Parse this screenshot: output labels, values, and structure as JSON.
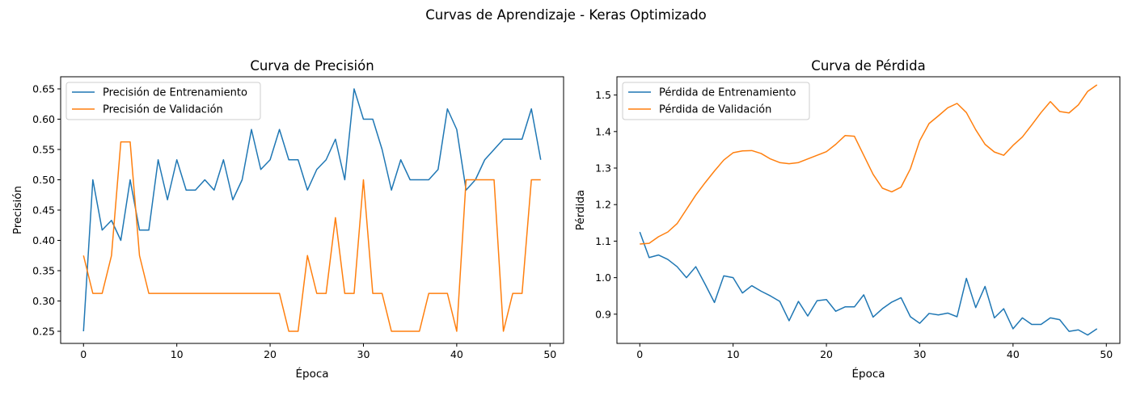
{
  "figure_title": "Curvas de Aprendizaje - Keras Optimizado",
  "chart_data": [
    {
      "type": "line",
      "title": "Curva de Precisión",
      "xlabel": "Época",
      "ylabel": "Precisión",
      "xlim": [
        -2.45,
        51.45
      ],
      "ylim": [
        0.23,
        0.67
      ],
      "xticks": [
        0,
        10,
        20,
        30,
        40,
        50
      ],
      "yticks": [
        0.25,
        0.3,
        0.35,
        0.4,
        0.45,
        0.5,
        0.55,
        0.6,
        0.65
      ],
      "ytick_decimals": 2,
      "legend_position": "upper-left",
      "x": [
        0,
        1,
        2,
        3,
        4,
        5,
        6,
        7,
        8,
        9,
        10,
        11,
        12,
        13,
        14,
        15,
        16,
        17,
        18,
        19,
        20,
        21,
        22,
        23,
        24,
        25,
        26,
        27,
        28,
        29,
        30,
        31,
        32,
        33,
        34,
        35,
        36,
        37,
        38,
        39,
        40,
        41,
        42,
        43,
        44,
        45,
        46,
        47,
        48,
        49
      ],
      "series": [
        {
          "name": "Precisión de Entrenamiento",
          "color": "#1f77b4",
          "values": [
            0.25,
            0.5,
            0.417,
            0.433,
            0.4,
            0.5,
            0.417,
            0.417,
            0.533,
            0.467,
            0.533,
            0.483,
            0.483,
            0.5,
            0.483,
            0.533,
            0.467,
            0.5,
            0.583,
            0.517,
            0.533,
            0.583,
            0.533,
            0.533,
            0.483,
            0.517,
            0.533,
            0.567,
            0.5,
            0.65,
            0.6,
            0.6,
            0.55,
            0.483,
            0.533,
            0.5,
            0.5,
            0.5,
            0.517,
            0.617,
            0.583,
            0.483,
            0.5,
            0.533,
            0.55,
            0.567,
            0.567,
            0.567,
            0.617,
            0.533
          ]
        },
        {
          "name": "Precisión de Validación",
          "color": "#ff7f0e",
          "values": [
            0.375,
            0.3125,
            0.3125,
            0.375,
            0.5625,
            0.5625,
            0.375,
            0.3125,
            0.3125,
            0.3125,
            0.3125,
            0.3125,
            0.3125,
            0.3125,
            0.3125,
            0.3125,
            0.3125,
            0.3125,
            0.3125,
            0.3125,
            0.3125,
            0.3125,
            0.25,
            0.25,
            0.375,
            0.3125,
            0.3125,
            0.4375,
            0.3125,
            0.3125,
            0.5,
            0.3125,
            0.3125,
            0.25,
            0.25,
            0.25,
            0.25,
            0.3125,
            0.3125,
            0.3125,
            0.25,
            0.5,
            0.5,
            0.5,
            0.5,
            0.25,
            0.3125,
            0.3125,
            0.5,
            0.5
          ]
        }
      ]
    },
    {
      "type": "line",
      "title": "Curva de Pérdida",
      "xlabel": "Época",
      "ylabel": "Pérdida",
      "xlim": [
        -2.45,
        51.45
      ],
      "ylim": [
        0.82,
        1.55
      ],
      "xticks": [
        0,
        10,
        20,
        30,
        40,
        50
      ],
      "yticks": [
        0.9,
        1.0,
        1.1,
        1.2,
        1.3,
        1.4,
        1.5
      ],
      "ytick_decimals": 1,
      "legend_position": "upper-left",
      "x": [
        0,
        1,
        2,
        3,
        4,
        5,
        6,
        7,
        8,
        9,
        10,
        11,
        12,
        13,
        14,
        15,
        16,
        17,
        18,
        19,
        20,
        21,
        22,
        23,
        24,
        25,
        26,
        27,
        28,
        29,
        30,
        31,
        32,
        33,
        34,
        35,
        36,
        37,
        38,
        39,
        40,
        41,
        42,
        43,
        44,
        45,
        46,
        47,
        48,
        49
      ],
      "series": [
        {
          "name": "Pérdida de Entrenamiento",
          "color": "#1f77b4",
          "values": [
            1.125,
            1.055,
            1.062,
            1.05,
            1.03,
            1.0,
            1.03,
            0.982,
            0.932,
            1.005,
            1.0,
            0.958,
            0.978,
            0.963,
            0.95,
            0.935,
            0.882,
            0.935,
            0.895,
            0.937,
            0.94,
            0.908,
            0.92,
            0.92,
            0.953,
            0.892,
            0.915,
            0.933,
            0.945,
            0.893,
            0.875,
            0.902,
            0.898,
            0.903,
            0.893,
            0.998,
            0.918,
            0.976,
            0.89,
            0.915,
            0.86,
            0.89,
            0.872,
            0.872,
            0.89,
            0.885,
            0.853,
            0.857,
            0.843,
            0.86
          ]
        },
        {
          "name": "Pérdida de Validación",
          "color": "#ff7f0e",
          "values": [
            1.092,
            1.094,
            1.112,
            1.125,
            1.148,
            1.187,
            1.226,
            1.26,
            1.292,
            1.322,
            1.342,
            1.347,
            1.348,
            1.34,
            1.325,
            1.315,
            1.312,
            1.315,
            1.325,
            1.335,
            1.345,
            1.365,
            1.389,
            1.387,
            1.335,
            1.283,
            1.245,
            1.235,
            1.248,
            1.298,
            1.375,
            1.422,
            1.443,
            1.465,
            1.477,
            1.452,
            1.405,
            1.365,
            1.344,
            1.335,
            1.362,
            1.385,
            1.418,
            1.452,
            1.482,
            1.455,
            1.451,
            1.473,
            1.51,
            1.528
          ]
        }
      ]
    }
  ]
}
